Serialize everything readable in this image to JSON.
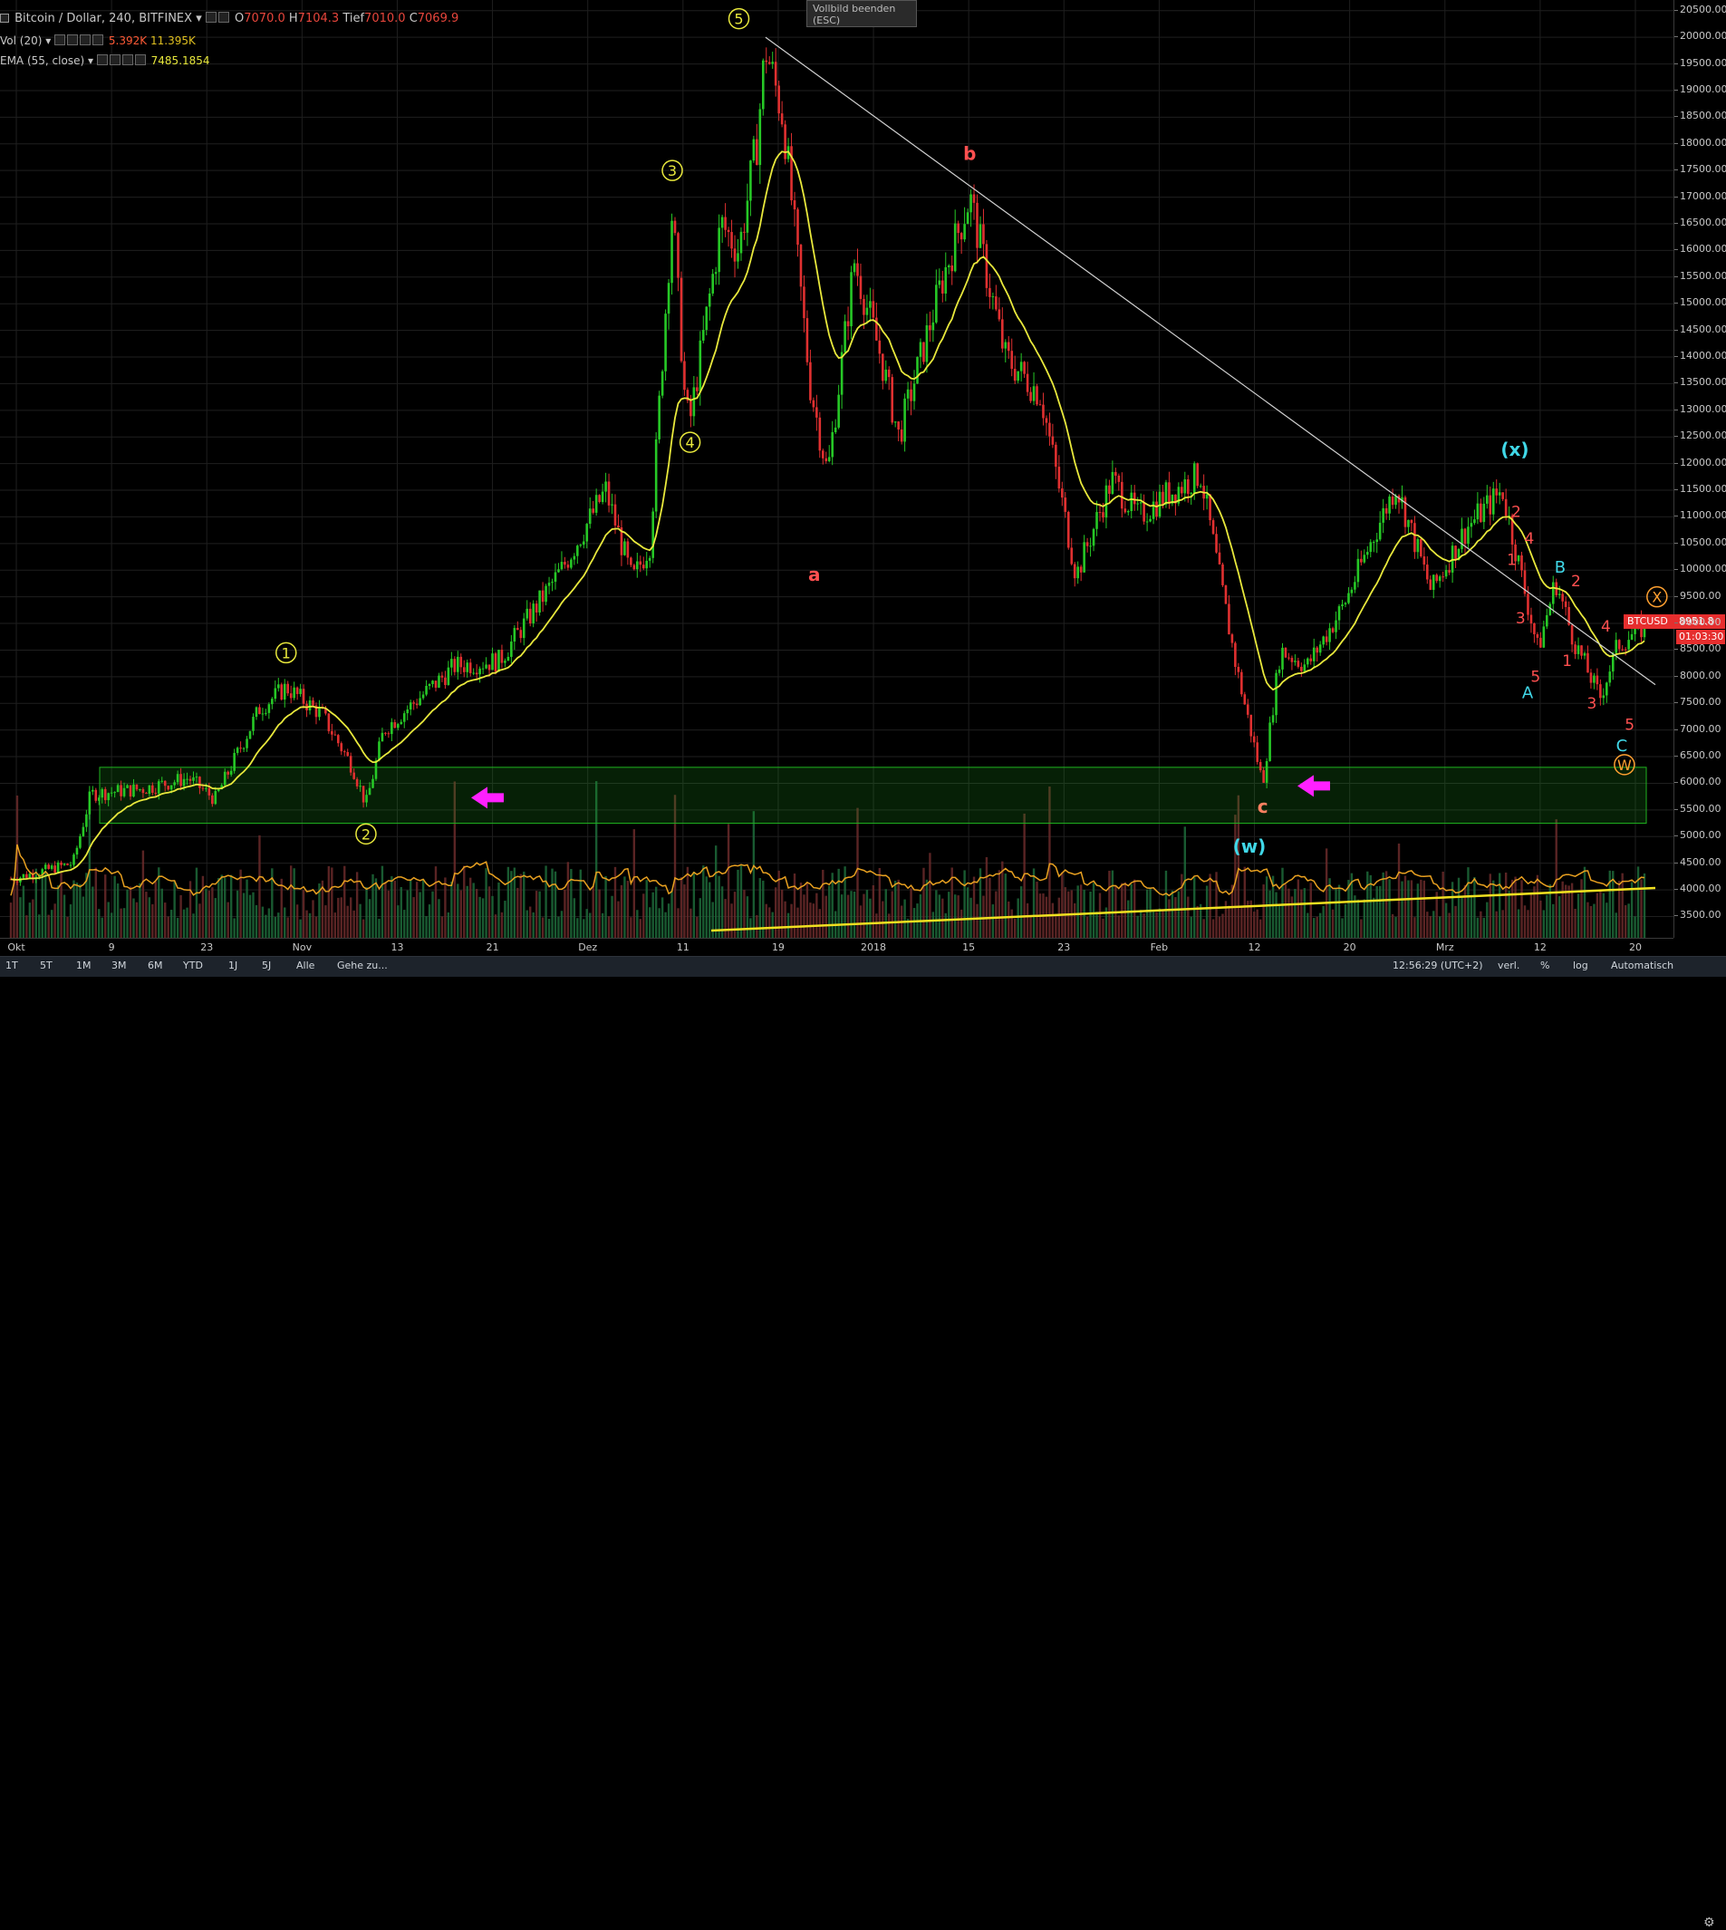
{
  "legend": {
    "symbol": "Bitcoin / Dollar, 240, BITFINEX",
    "open_label": "O",
    "open": "7070.0",
    "high_label": "H",
    "high": "7104.3",
    "low_label": "Tief",
    "low": "7010.0",
    "close_label": "C",
    "close": "7069.9",
    "vol_name": "Vol (20)",
    "vol_value": "5.392K",
    "vol_ma": "11.395K",
    "ema_name": "EMA (55, close)",
    "ema_value": "7485.1854"
  },
  "fullscreen_tip": {
    "line1": "Vollbild beenden",
    "line2": "(ESC)"
  },
  "price_tag": {
    "symbol": "BTCUSD",
    "price": "8951.8",
    "countdown": "01:03:30"
  },
  "time_axis": [
    "Okt",
    "9",
    "23",
    "Nov",
    "13",
    "21",
    "Dez",
    "11",
    "19",
    "2018",
    "15",
    "23",
    "Feb",
    "12",
    "20",
    "Mrz",
    "12",
    "20"
  ],
  "price_axis": [
    "20500.00",
    "20000.00",
    "19500.00",
    "19000.00",
    "18500.00",
    "18000.00",
    "17500.00",
    "17000.00",
    "16500.00",
    "16000.00",
    "15500.00",
    "15000.00",
    "14500.00",
    "14000.00",
    "13500.00",
    "13000.00",
    "12500.00",
    "12000.00",
    "11500.00",
    "11000.00",
    "10500.00",
    "10000.00",
    "9500.00",
    "9000.00",
    "8500.00",
    "8000.00",
    "7500.00",
    "7000.00",
    "6500.00",
    "6000.00",
    "5500.00",
    "5000.00",
    "4500.00",
    "4000.00",
    "3500.00"
  ],
  "bottom_bar": {
    "ranges": [
      "1T",
      "5T",
      "1M",
      "3M",
      "6M",
      "YTD",
      "1J",
      "5J",
      "Alle"
    ],
    "goto": "Gehe zu...",
    "clock": "12:56:29 (UTC+2)",
    "mode1": "verl.",
    "mode2": "%",
    "mode3": "log",
    "mode4": "Automatisch"
  },
  "annotations": {
    "circled": [
      "1",
      "2",
      "3",
      "4",
      "5"
    ],
    "letters": [
      "a",
      "b",
      "c"
    ],
    "waves": [
      "(w)",
      "(x)"
    ],
    "right_red": [
      "2",
      "1",
      "4",
      "3",
      "5",
      "2",
      "1",
      "3",
      "4",
      "5"
    ],
    "right_cyan": [
      "A",
      "B",
      "C"
    ],
    "right_orange": [
      "W",
      "X"
    ]
  },
  "colors": {
    "up": "#26c826",
    "down": "#e03030",
    "ema": "#e8e83c",
    "vol_ma": "#e8a020",
    "zone": "#1fb21f",
    "trendline": "#d0d0d0",
    "arrow": "#ff20ff",
    "wave_circle": "#e8e83c",
    "cyan": "#40d8e8",
    "red_label": "#ff5050",
    "orange_label": "#ffa030"
  },
  "chart_data": {
    "type": "candlestick",
    "title": "Bitcoin / Dollar, 240, BITFINEX",
    "y_range": [
      3100,
      20700
    ],
    "x": [
      "Okt",
      "9",
      "23",
      "Nov",
      "13",
      "21",
      "Dez",
      "11",
      "19",
      "2018",
      "15",
      "23",
      "Feb",
      "12",
      "20",
      "Mrz",
      "12",
      "20"
    ],
    "price_path": [
      [
        0,
        4200
      ],
      [
        0.07,
        4500
      ],
      [
        0.09,
        5800
      ],
      [
        0.15,
        5900
      ],
      [
        0.2,
        6100
      ],
      [
        0.23,
        5700
      ],
      [
        0.28,
        7400
      ],
      [
        0.31,
        7800
      ],
      [
        0.35,
        7300
      ],
      [
        0.385,
        6300
      ],
      [
        0.4,
        5600
      ],
      [
        0.42,
        7000
      ],
      [
        0.5,
        8200
      ],
      [
        0.55,
        8300
      ],
      [
        0.62,
        10000
      ],
      [
        0.67,
        11500
      ],
      [
        0.7,
        9800
      ],
      [
        0.72,
        10500
      ],
      [
        0.745,
        16800
      ],
      [
        0.76,
        13000
      ],
      [
        0.765,
        12800
      ],
      [
        0.8,
        16500
      ],
      [
        0.82,
        16000
      ],
      [
        0.84,
        18000
      ],
      [
        0.85,
        19800
      ],
      [
        0.87,
        18500
      ],
      [
        0.9,
        13500
      ],
      [
        0.92,
        11800
      ],
      [
        0.95,
        15800
      ],
      [
        0.98,
        14000
      ],
      [
        1.0,
        12500
      ],
      [
        1.05,
        15500
      ],
      [
        1.08,
        17000
      ],
      [
        1.12,
        14000
      ],
      [
        1.16,
        13300
      ],
      [
        1.2,
        9900
      ],
      [
        1.24,
        11700
      ],
      [
        1.27,
        11000
      ],
      [
        1.3,
        11400
      ],
      [
        1.34,
        11800
      ],
      [
        1.38,
        8200
      ],
      [
        1.41,
        6000
      ],
      [
        1.43,
        8500
      ],
      [
        1.46,
        8200
      ],
      [
        1.5,
        9300
      ],
      [
        1.56,
        11600
      ],
      [
        1.6,
        9600
      ],
      [
        1.64,
        10800
      ],
      [
        1.68,
        11500
      ],
      [
        1.7,
        10000
      ],
      [
        1.72,
        8500
      ],
      [
        1.74,
        9800
      ],
      [
        1.76,
        8700
      ],
      [
        1.79,
        7600
      ],
      [
        1.81,
        8600
      ],
      [
        1.84,
        8950
      ]
    ],
    "zone_support": [
      5250,
      6300
    ],
    "ema55_last": 7485.1854,
    "volume_ma_last": 11395,
    "volume_last": 5392,
    "grid": true
  }
}
